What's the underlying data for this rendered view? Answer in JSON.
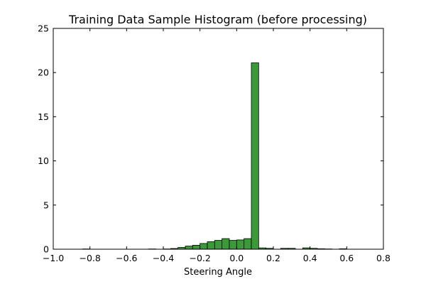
{
  "chart_data": {
    "type": "bar",
    "title": "Training Data Sample Histogram (before processing)",
    "xlabel": "Steering Angle",
    "ylabel": "",
    "xlim": [
      -1.0,
      0.8
    ],
    "ylim": [
      0,
      25
    ],
    "x_ticks": [
      -1.0,
      -0.8,
      -0.6,
      -0.4,
      -0.2,
      0.0,
      0.2,
      0.4,
      0.6,
      0.8
    ],
    "x_tick_labels": [
      "−1.0",
      "−0.8",
      "−0.6",
      "−0.4",
      "−0.2",
      "0.0",
      "0.2",
      "0.4",
      "0.6",
      "0.8"
    ],
    "y_ticks": [
      0,
      5,
      10,
      15,
      20,
      25
    ],
    "y_tick_labels": [
      "0",
      "5",
      "10",
      "15",
      "20",
      "25"
    ],
    "bar_color": "#3a9a3a",
    "bar_edge_color": "#000000",
    "bin_width": 0.04,
    "bins": [
      {
        "left": -0.84,
        "value": 0.03
      },
      {
        "left": -0.48,
        "value": 0.03
      },
      {
        "left": -0.4,
        "value": 0.03
      },
      {
        "left": -0.36,
        "value": 0.08
      },
      {
        "left": -0.32,
        "value": 0.2
      },
      {
        "left": -0.28,
        "value": 0.35
      },
      {
        "left": -0.24,
        "value": 0.45
      },
      {
        "left": -0.2,
        "value": 0.65
      },
      {
        "left": -0.16,
        "value": 0.85
      },
      {
        "left": -0.12,
        "value": 1.0
      },
      {
        "left": -0.08,
        "value": 1.2
      },
      {
        "left": -0.04,
        "value": 1.0
      },
      {
        "left": 0.0,
        "value": 1.05
      },
      {
        "left": 0.04,
        "value": 1.2
      },
      {
        "left": 0.08,
        "value": 21.1
      },
      {
        "left": 0.12,
        "value": 0.15
      },
      {
        "left": 0.16,
        "value": 0.1
      },
      {
        "left": 0.24,
        "value": 0.1
      },
      {
        "left": 0.28,
        "value": 0.1
      },
      {
        "left": 0.36,
        "value": 0.15
      },
      {
        "left": 0.4,
        "value": 0.1
      },
      {
        "left": 0.44,
        "value": 0.05
      },
      {
        "left": 0.48,
        "value": 0.03
      },
      {
        "left": 0.56,
        "value": 0.05
      }
    ]
  }
}
